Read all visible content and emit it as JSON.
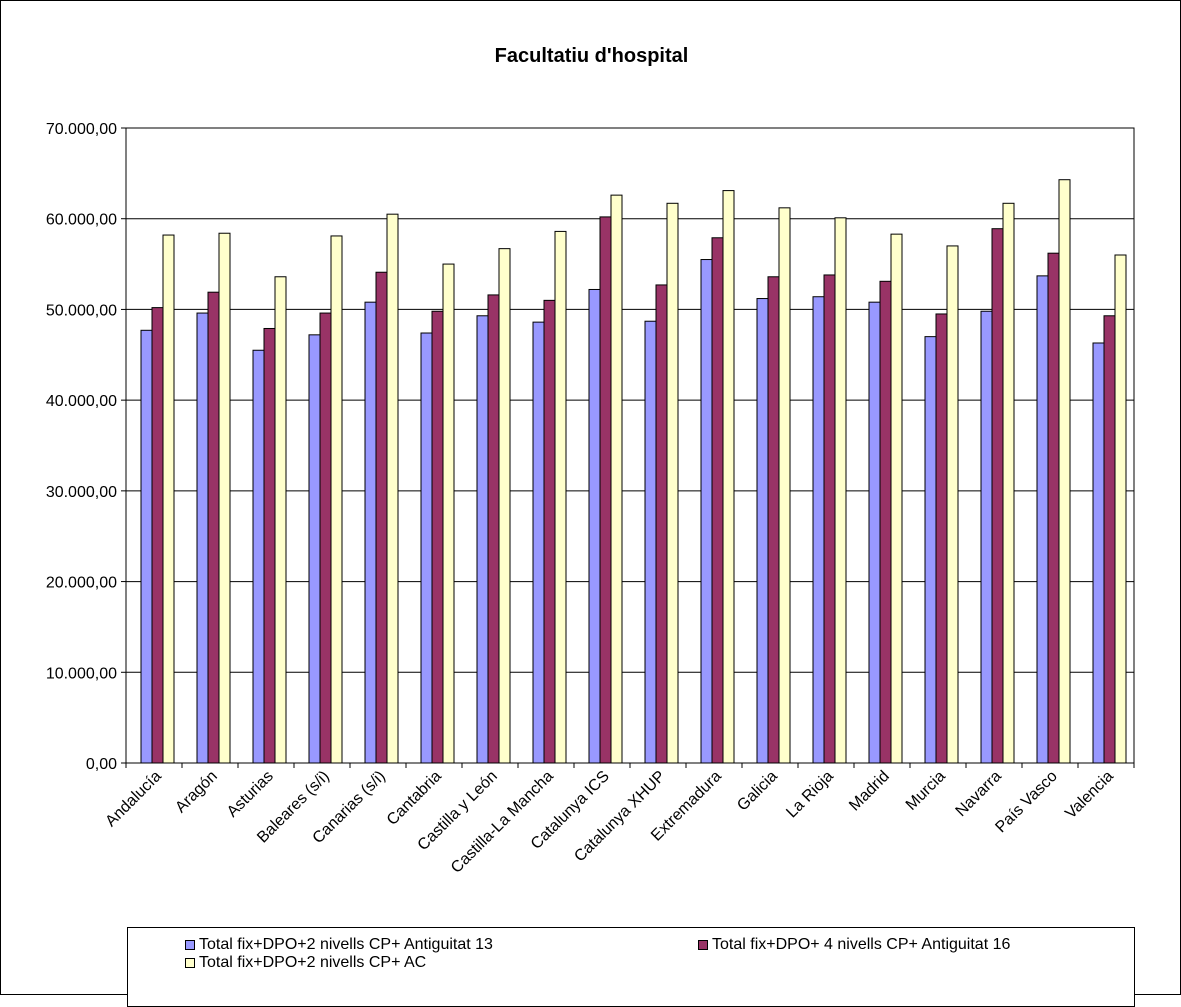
{
  "chart_data": {
    "type": "bar",
    "title": "Facultatiu d'hospital",
    "xlabel": "",
    "ylabel": "",
    "ylim": [
      0,
      70000
    ],
    "yticks": [
      0,
      10000,
      20000,
      30000,
      40000,
      50000,
      60000,
      70000
    ],
    "ytick_labels": [
      "0,00",
      "10.000,00",
      "20.000,00",
      "30.000,00",
      "40.000,00",
      "50.000,00",
      "60.000,00",
      "70.000,00"
    ],
    "grid": true,
    "legend_position": "bottom",
    "categories": [
      "Andalucía",
      "Aragón",
      "Asturias",
      "Baleares (s/i)",
      "Canarias (s/i)",
      "Cantabria",
      "Castilla y León",
      "Castilla-La Mancha",
      "Catalunya ICS",
      "Catalunya XHUP",
      "Extremadura",
      "Galicia",
      "La Rioja",
      "Madrid",
      "Murcia",
      "Navarra",
      "País Vasco",
      "Valencia"
    ],
    "series": [
      {
        "name": "Total fix+DPO+2 nivells CP+ Antiguitat 13",
        "color": "#9999ff",
        "values": [
          47700,
          49600,
          45500,
          47200,
          50800,
          47400,
          49300,
          48600,
          52200,
          48700,
          55500,
          51200,
          51400,
          50800,
          47000,
          49800,
          53700,
          46300
        ]
      },
      {
        "name": "Total fix+DPO+ 4 nivells CP+ Antiguitat 16",
        "color": "#993366",
        "values": [
          50200,
          51900,
          47900,
          49600,
          54100,
          49800,
          51600,
          51000,
          60200,
          52700,
          57900,
          53600,
          53800,
          53100,
          49500,
          58900,
          56200,
          49300
        ]
      },
      {
        "name": "Total fix+DPO+2 nivells CP+ AC",
        "color": "#ffffcc",
        "values": [
          58200,
          58400,
          53600,
          58100,
          60500,
          55000,
          56700,
          58600,
          62600,
          61700,
          63100,
          61200,
          60100,
          58300,
          57000,
          61700,
          64300,
          56000
        ]
      }
    ]
  }
}
